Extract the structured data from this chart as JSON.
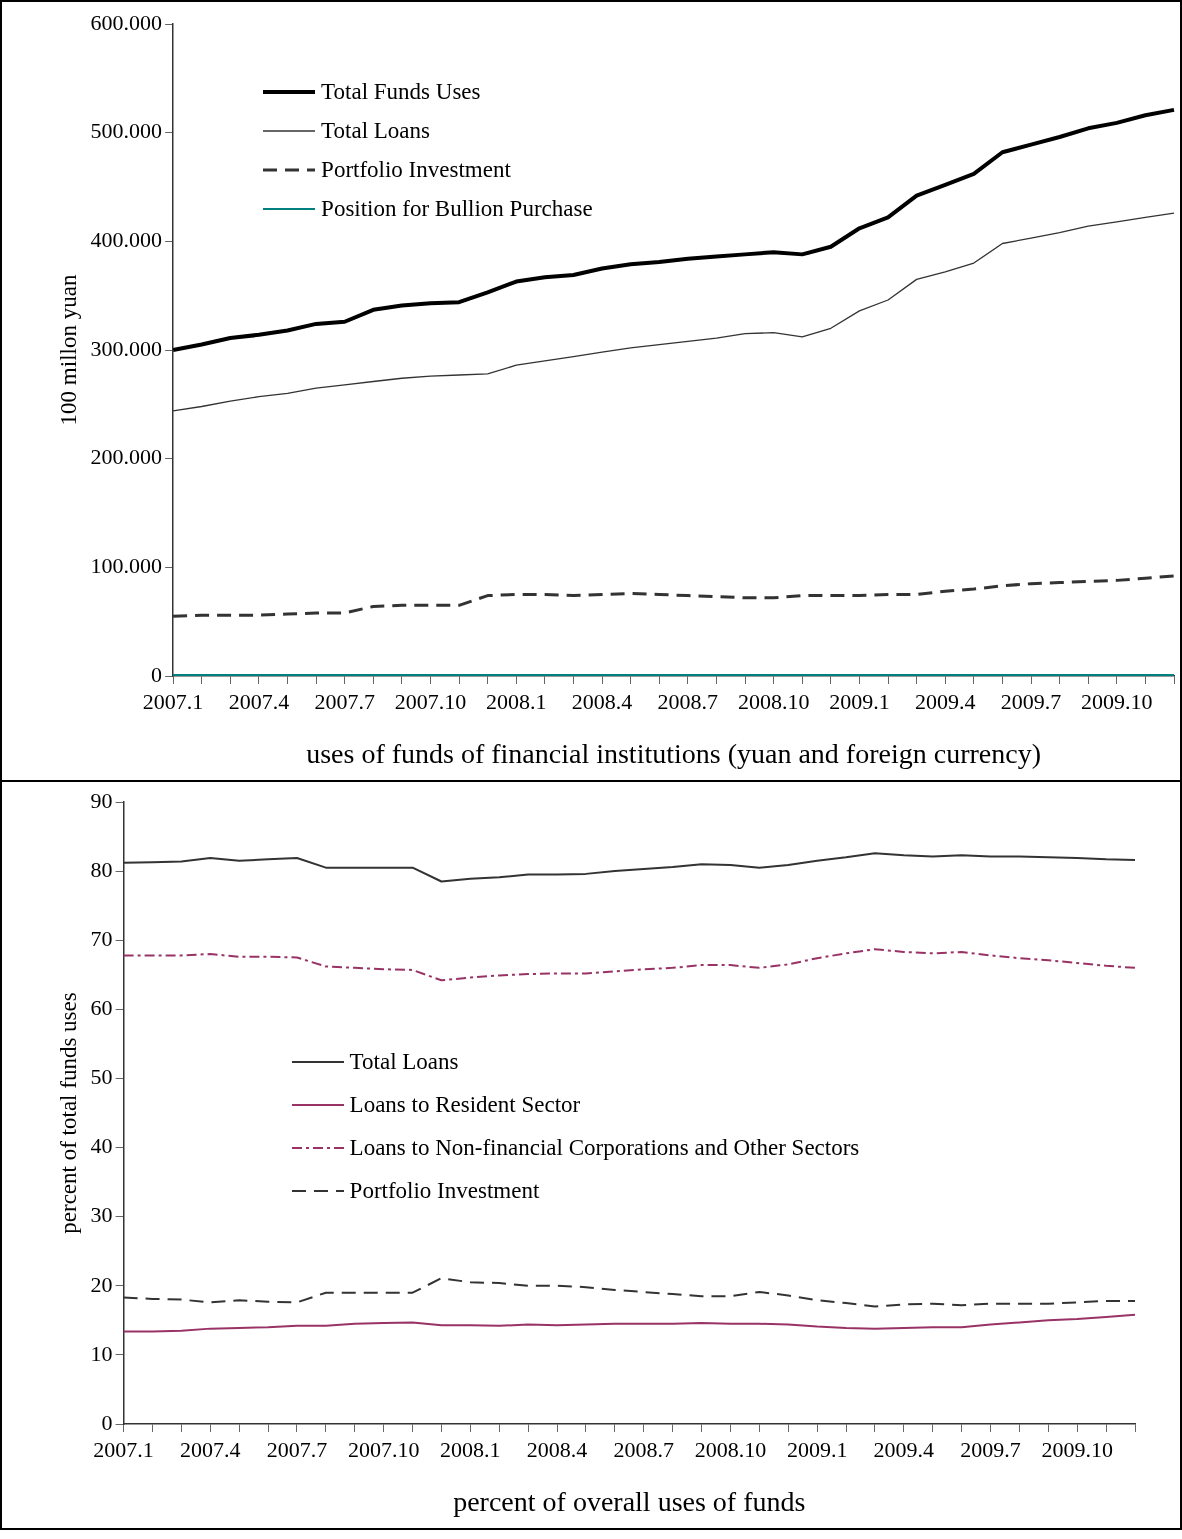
{
  "chart_data": [
    {
      "type": "line",
      "xlabel": "uses of funds of financial institutions (yuan and foreign currency)",
      "ylabel": "100 millon yuan",
      "categories": [
        "2007.1",
        null,
        null,
        "2007.4",
        null,
        null,
        "2007.7",
        null,
        null,
        "2007.10",
        null,
        null,
        "2008.1",
        null,
        null,
        "2008.4",
        null,
        null,
        "2008.7",
        null,
        null,
        "2008.10",
        null,
        null,
        "2009.1",
        null,
        null,
        "2009.4",
        null,
        null,
        "2009.7",
        null,
        null,
        "2009.10",
        null,
        null
      ],
      "ylim": [
        0,
        600
      ],
      "yticks": [
        0,
        {
          "value": 100,
          "label": "100.000"
        },
        {
          "value": 200,
          "label": "200.000"
        },
        {
          "value": 300,
          "label": "300.000"
        },
        {
          "value": 400,
          "label": "400.000"
        },
        {
          "value": 500,
          "label": "500.000"
        },
        {
          "value": 600,
          "label": "600.000"
        }
      ],
      "grid": false,
      "legend": "top left",
      "marker": "none",
      "series": [
        {
          "name": "Total Funds Uses",
          "color": "#000000",
          "line_style": "solid",
          "values": [
            300,
            305,
            311,
            314,
            318,
            324,
            326,
            337,
            341,
            343,
            344,
            353,
            363,
            367,
            369,
            375,
            379,
            381,
            384,
            386,
            388,
            390,
            388,
            395,
            412,
            422,
            442,
            452,
            462,
            482,
            489,
            496,
            504,
            509,
            516,
            521
          ]
        },
        {
          "name": "Total Loans",
          "color": "#333333",
          "line_style": "solid",
          "values": [
            244,
            248,
            253,
            257,
            260,
            265,
            268,
            271,
            274,
            276,
            277,
            278,
            286,
            290,
            294,
            298,
            302,
            305,
            308,
            311,
            315,
            316,
            312,
            320,
            336,
            346,
            365,
            372,
            380,
            398,
            403,
            408,
            414,
            418,
            422,
            426
          ]
        },
        {
          "name": "Portfolio Investment",
          "color": "#333333",
          "line_style": "dashed",
          "values": [
            55,
            56,
            56,
            56,
            57,
            58,
            58,
            64,
            65,
            65,
            65,
            74,
            75,
            75,
            74,
            75,
            76,
            75,
            74,
            73,
            72,
            72,
            74,
            74,
            74,
            75,
            75,
            78,
            80,
            83,
            85,
            86,
            87,
            88,
            90,
            92
          ]
        },
        {
          "name": "Position for Bullion Purchase",
          "color": "#008080",
          "line_style": "solid",
          "values": [
            1,
            1,
            1,
            1,
            1,
            1,
            1,
            1,
            1,
            1,
            1,
            1,
            1,
            1,
            1,
            1,
            1,
            1,
            1,
            1,
            1,
            1,
            1,
            1,
            1,
            1,
            1,
            1,
            1,
            1,
            1,
            1,
            1,
            1,
            1,
            1
          ]
        }
      ]
    },
    {
      "type": "line",
      "xlabel": "percent of overall uses of funds",
      "ylabel": "percent of total funds uses",
      "categories": [
        "2007.1",
        null,
        null,
        "2007.4",
        null,
        null,
        "2007.7",
        null,
        null,
        "2007.10",
        null,
        null,
        "2008.1",
        null,
        null,
        "2008.4",
        null,
        null,
        "2008.7",
        null,
        null,
        "2008.10",
        null,
        null,
        "2009.1",
        null,
        null,
        "2009.4",
        null,
        null,
        "2009.7",
        null,
        null,
        "2009.10",
        null,
        null
      ],
      "ylim": [
        0,
        90
      ],
      "yticks": [
        0,
        10,
        20,
        30,
        40,
        50,
        60,
        70,
        80,
        90
      ],
      "grid": false,
      "legend": "left",
      "marker": "none",
      "series": [
        {
          "name": "Total Loans",
          "color": "#333333",
          "line_style": "solid",
          "values": [
            81.2,
            81.3,
            81.4,
            81.9,
            81.5,
            81.7,
            81.9,
            80.5,
            80.5,
            80.5,
            80.5,
            78.5,
            78.9,
            79.1,
            79.5,
            79.5,
            79.6,
            80.0,
            80.3,
            80.6,
            81.0,
            80.9,
            80.5,
            80.9,
            81.5,
            82.0,
            82.6,
            82.3,
            82.1,
            82.3,
            82.1,
            82.1,
            82.0,
            81.9,
            81.7,
            81.6
          ]
        },
        {
          "name": "Loans to Resident Sector",
          "color": "#993366",
          "line_style": "solid",
          "values": [
            13.4,
            13.4,
            13.5,
            13.8,
            13.9,
            14.0,
            14.2,
            14.2,
            14.5,
            14.6,
            14.7,
            14.3,
            14.3,
            14.2,
            14.4,
            14.3,
            14.4,
            14.5,
            14.5,
            14.5,
            14.6,
            14.5,
            14.5,
            14.4,
            14.1,
            13.9,
            13.8,
            13.9,
            14.0,
            14.0,
            14.4,
            14.7,
            15.0,
            15.2,
            15.5,
            15.8
          ]
        },
        {
          "name": "Loans to Non-financial Corporations and Other Sectors",
          "color": "#993366",
          "line_style": "dashdot",
          "values": [
            67.8,
            67.8,
            67.8,
            68.0,
            67.6,
            67.6,
            67.5,
            66.2,
            66.0,
            65.8,
            65.7,
            64.2,
            64.6,
            64.9,
            65.1,
            65.2,
            65.2,
            65.5,
            65.8,
            66.0,
            66.4,
            66.4,
            66.0,
            66.5,
            67.4,
            68.1,
            68.7,
            68.3,
            68.1,
            68.3,
            67.8,
            67.4,
            67.1,
            66.7,
            66.3,
            66.0
          ]
        },
        {
          "name": "Portfolio Investment",
          "color": "#333333",
          "line_style": "dashed",
          "values": [
            18.3,
            18.1,
            18.0,
            17.6,
            17.9,
            17.7,
            17.6,
            19.0,
            19.0,
            19.0,
            19.0,
            21.1,
            20.5,
            20.4,
            20.0,
            20.0,
            19.8,
            19.4,
            19.1,
            18.8,
            18.5,
            18.5,
            19.1,
            18.6,
            17.9,
            17.5,
            17.0,
            17.3,
            17.4,
            17.2,
            17.4,
            17.4,
            17.4,
            17.6,
            17.8,
            17.8
          ]
        }
      ]
    }
  ]
}
